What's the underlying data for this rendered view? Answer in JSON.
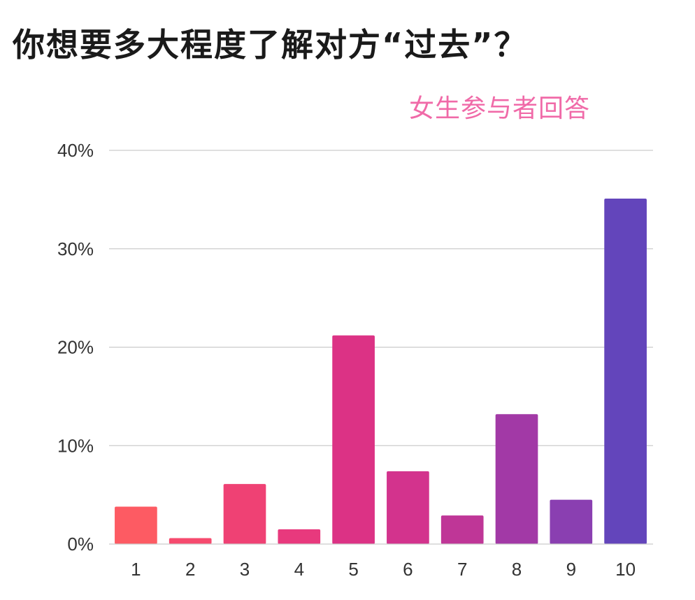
{
  "title": "你想要多大程度了解对方“过去”？",
  "subtitle": "女生参与者回答",
  "colors": {
    "grid": "#cccccc",
    "subtitle": "#f06aa8",
    "bars": [
      "#fd5b63",
      "#f64a6e",
      "#ef4174",
      "#e8397d",
      "#dc3285",
      "#d3338d",
      "#bf3697",
      "#a239a6",
      "#8a3fb1",
      "#6345bb"
    ]
  },
  "chart_data": {
    "type": "bar",
    "categories": [
      "1",
      "2",
      "3",
      "4",
      "5",
      "6",
      "7",
      "8",
      "9",
      "10"
    ],
    "values": [
      3.8,
      0.6,
      6.1,
      1.5,
      21.2,
      7.4,
      2.9,
      13.2,
      4.5,
      35.1
    ],
    "ylim": [
      0,
      40
    ],
    "yticks": [
      "0%",
      "10%",
      "20%",
      "30%",
      "40%"
    ],
    "grid": true
  }
}
